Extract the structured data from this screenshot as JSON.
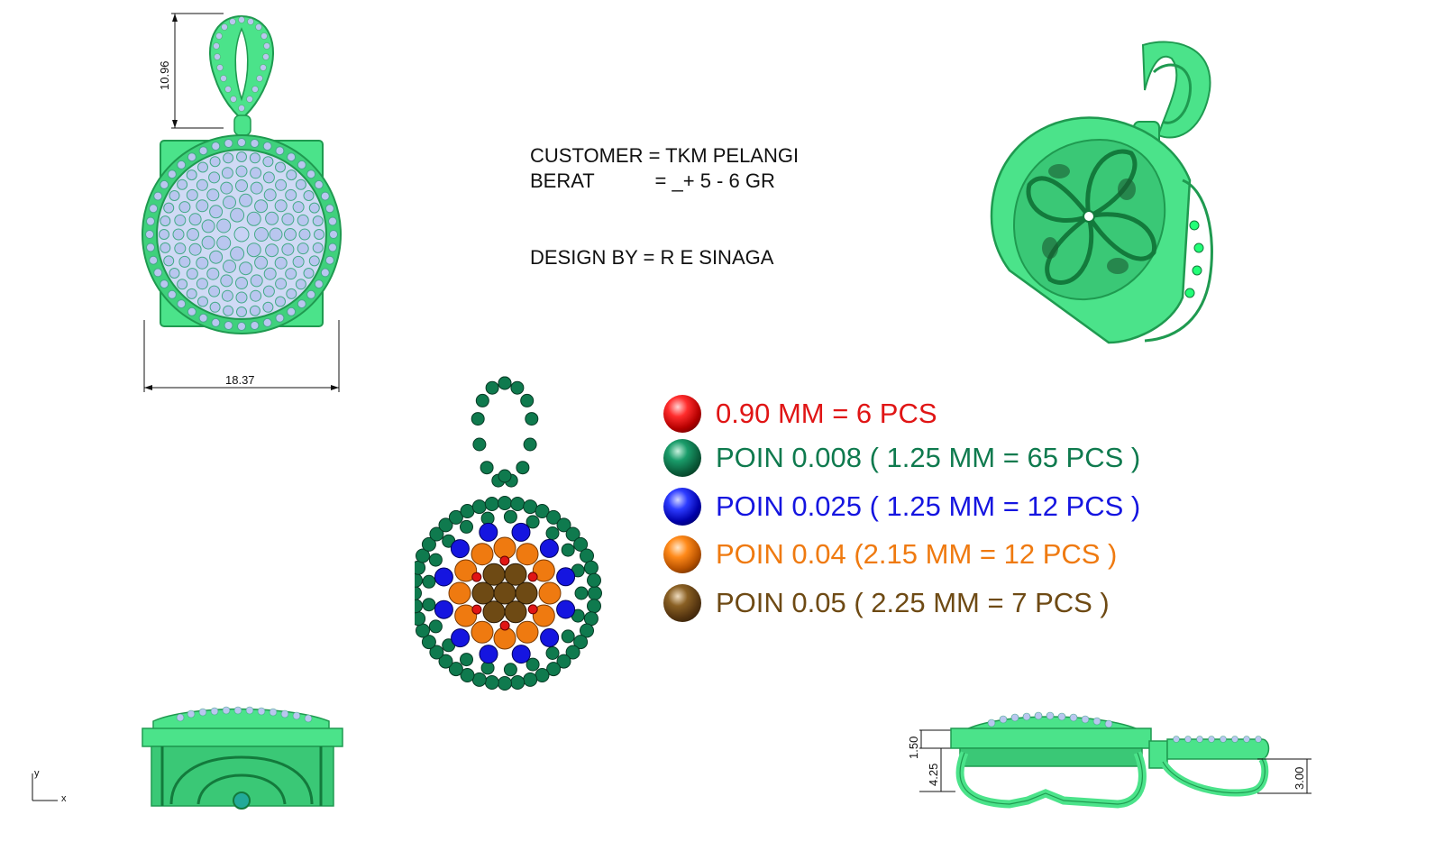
{
  "info": {
    "customer": "CUSTOMER = TKM PELANGI",
    "berat": "BERAT           = _+ 5 - 6 GR",
    "design_by": "DESIGN BY = R E SINAGA"
  },
  "dimensions": {
    "bail_height": "10.96",
    "width": "18.37",
    "side_a": "1.50",
    "side_b": "4.25",
    "side_c": "3.00"
  },
  "legend": [
    {
      "text": "0.90 MM = 6 PCS",
      "color": "#e01515",
      "ball": "red"
    },
    {
      "text": "POIN 0.008 ( 1.25 MM = 65 PCS )",
      "color": "#0f7a4e",
      "ball": "dark-green"
    },
    {
      "text": "POIN 0.025 ( 1.25 MM = 12 PCS )",
      "color": "#1515e0",
      "ball": "blue"
    },
    {
      "text": "POIN 0.04 (2.15 MM = 12 PCS )",
      "color": "#ef7a10",
      "ball": "orange"
    },
    {
      "text": "POIN 0.05 ( 2.25 MM = 7 PCS )",
      "color": "#6e4a14",
      "ball": "brown"
    }
  ],
  "axes": {
    "y": "y",
    "x": "x"
  },
  "colors": {
    "metal": "#4be38a",
    "metal_dark": "#1f9a50",
    "stone": "#b9c6ef"
  }
}
